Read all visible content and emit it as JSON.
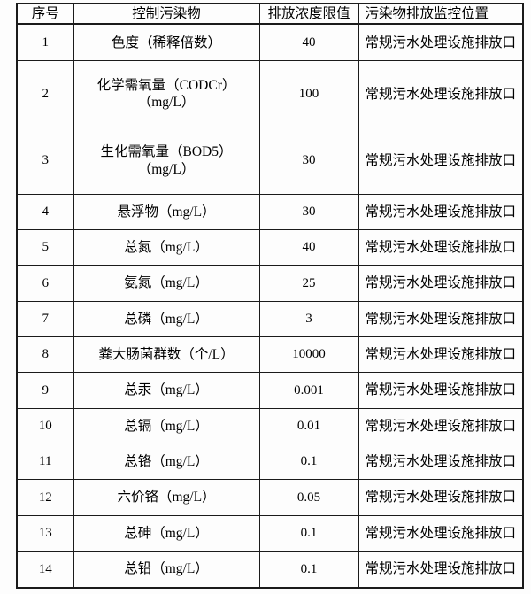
{
  "colors": {
    "page_background": "#fdfdfd",
    "border": "#1b1b1b",
    "text": "#000000"
  },
  "table": {
    "headers": [
      "序号",
      "控制污染物",
      "排放浓度限值",
      "污染物排放监控位置"
    ],
    "rows": [
      {
        "serial": "1",
        "pollutant": "色度（稀释倍数）",
        "limit": "40",
        "location": "常规污水处理设施排放口"
      },
      {
        "serial": "2",
        "pollutant": "化学需氧量（CODCr）（mg/L）",
        "limit": "100",
        "location": "常规污水处理设施排放口"
      },
      {
        "serial": "3",
        "pollutant": "生化需氧量（BOD5） （mg/L）",
        "limit": "30",
        "location": "常规污水处理设施排放口"
      },
      {
        "serial": "4",
        "pollutant": "悬浮物（mg/L）",
        "limit": "30",
        "location": "常规污水处理设施排放口"
      },
      {
        "serial": "5",
        "pollutant": "总氮（mg/L）",
        "limit": "40",
        "location": "常规污水处理设施排放口"
      },
      {
        "serial": "6",
        "pollutant": "氨氮（mg/L）",
        "limit": "25",
        "location": "常规污水处理设施排放口"
      },
      {
        "serial": "7",
        "pollutant": "总磷（mg/L）",
        "limit": "3",
        "location": "常规污水处理设施排放口"
      },
      {
        "serial": "8",
        "pollutant": "粪大肠菌群数（个/L）",
        "limit": "10000",
        "location": "常规污水处理设施排放口"
      },
      {
        "serial": "9",
        "pollutant": "总汞（mg/L）",
        "limit": "0.001",
        "location": "常规污水处理设施排放口"
      },
      {
        "serial": "10",
        "pollutant": "总镉（mg/L）",
        "limit": "0.01",
        "location": "常规污水处理设施排放口"
      },
      {
        "serial": "11",
        "pollutant": "总铬（mg/L）",
        "limit": "0.1",
        "location": "常规污水处理设施排放口"
      },
      {
        "serial": "12",
        "pollutant": "六价铬（mg/L）",
        "limit": "0.05",
        "location": "常规污水处理设施排放口"
      },
      {
        "serial": "13",
        "pollutant": "总砷（mg/L）",
        "limit": "0.1",
        "location": "常规污水处理设施排放口"
      },
      {
        "serial": "14",
        "pollutant": "总铅（mg/L）",
        "limit": "0.1",
        "location": "常规污水处理设施排放口"
      }
    ]
  }
}
